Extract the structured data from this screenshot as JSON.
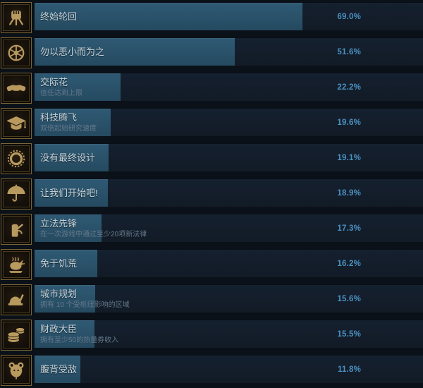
{
  "panel": {
    "kind": "steam-global-achievement-stats",
    "colors": {
      "background": "#0b1118",
      "bar_track": "#131c27",
      "bar_fill": "#2a5168",
      "percent_text": "#4a90c0",
      "title_text": "#c8d5dd",
      "desc_text": "#64788a",
      "icon_gold": "#b99a5e"
    }
  },
  "achievements": [
    {
      "name": "终始轮回",
      "desc": "",
      "pct": "69.0%",
      "value": 69.0,
      "icon": "fist-icon"
    },
    {
      "name": "勿以恶小而为之",
      "desc": "",
      "pct": "51.6%",
      "value": 51.6,
      "icon": "radial-badge-icon"
    },
    {
      "name": "交际花",
      "desc": "信任达到上限",
      "pct": "22.2%",
      "value": 22.2,
      "icon": "handshake-icon"
    },
    {
      "name": "科技腾飞",
      "desc": "双倍起始研究速度",
      "pct": "19.6%",
      "value": 19.6,
      "icon": "graduation-cap-icon"
    },
    {
      "name": "没有最终设计",
      "desc": "",
      "pct": "19.1%",
      "value": 19.1,
      "icon": "ring-icon"
    },
    {
      "name": "让我们开始吧!",
      "desc": "",
      "pct": "18.9%",
      "value": 18.9,
      "icon": "umbrella-icon"
    },
    {
      "name": "立法先锋",
      "desc": "在一次游戏中通过至少20项新法律",
      "pct": "17.3%",
      "value": 17.3,
      "icon": "jug-icon"
    },
    {
      "name": "免于饥荒",
      "desc": "",
      "pct": "16.2%",
      "value": 16.2,
      "icon": "turkey-icon"
    },
    {
      "name": "城市规划",
      "desc": "拥有 10 个受枢纽影响的区域",
      "pct": "15.6%",
      "value": 15.6,
      "icon": "hardhat-icon"
    },
    {
      "name": "财政大臣",
      "desc": "拥有至少50的热量券收入",
      "pct": "15.5%",
      "value": 15.5,
      "icon": "coins-icon"
    },
    {
      "name": "腹背受敌",
      "desc": "",
      "pct": "11.8%",
      "value": 11.8,
      "icon": "mouse-icon"
    }
  ]
}
